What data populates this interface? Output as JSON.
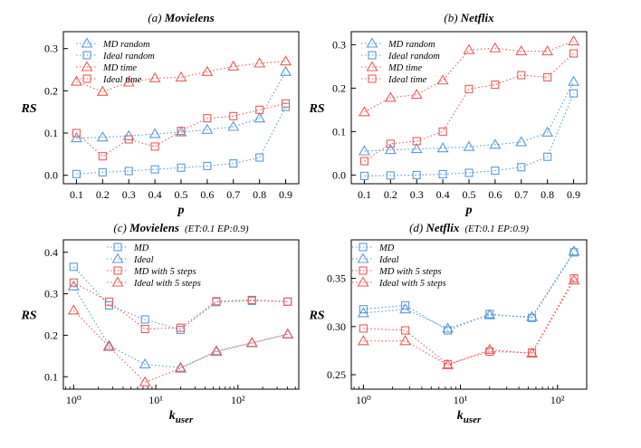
{
  "colors": {
    "blue": "#5b9bd5",
    "red": "#ef5b5b"
  },
  "chart_data": [
    {
      "type": "line",
      "title_prefix": "(a) ",
      "title_main": "Movielens",
      "title_suffix": "",
      "xlabel": "p",
      "ylabel": "RS",
      "xscale": "linear",
      "xlim": [
        0.05,
        0.95
      ],
      "ylim": [
        -0.02,
        0.34
      ],
      "xticks": [
        0.1,
        0.2,
        0.3,
        0.4,
        0.5,
        0.6,
        0.7,
        0.8,
        0.9
      ],
      "xtick_labels": [
        "0.1",
        "0.2",
        "0.3",
        "0.4",
        "0.5",
        "0.6",
        "0.7",
        "0.8",
        "0.9"
      ],
      "yticks": [
        0.0,
        0.1,
        0.2,
        0.3
      ],
      "ytick_labels": [
        "0.0",
        "0.1",
        "0.2",
        "0.3"
      ],
      "legend_position": "top-left",
      "series": [
        {
          "name": "MD random",
          "color": "blue",
          "marker": "triangle",
          "x": [
            0.1,
            0.2,
            0.3,
            0.4,
            0.5,
            0.6,
            0.7,
            0.8,
            0.9
          ],
          "y": [
            0.088,
            0.09,
            0.093,
            0.098,
            0.102,
            0.108,
            0.115,
            0.135,
            0.245
          ]
        },
        {
          "name": "Ideal random",
          "color": "blue",
          "marker": "square",
          "x": [
            0.1,
            0.2,
            0.3,
            0.4,
            0.5,
            0.6,
            0.7,
            0.8,
            0.9
          ],
          "y": [
            0.003,
            0.007,
            0.01,
            0.014,
            0.018,
            0.022,
            0.028,
            0.042,
            0.162
          ]
        },
        {
          "name": "MD time",
          "color": "red",
          "marker": "triangle",
          "x": [
            0.1,
            0.2,
            0.3,
            0.4,
            0.5,
            0.6,
            0.7,
            0.8,
            0.9
          ],
          "y": [
            0.222,
            0.198,
            0.22,
            0.23,
            0.232,
            0.245,
            0.258,
            0.265,
            0.27
          ]
        },
        {
          "name": "Ideal time",
          "color": "red",
          "marker": "square",
          "x": [
            0.1,
            0.2,
            0.3,
            0.4,
            0.5,
            0.6,
            0.7,
            0.8,
            0.9
          ],
          "y": [
            0.1,
            0.045,
            0.085,
            0.068,
            0.105,
            0.135,
            0.14,
            0.155,
            0.17
          ]
        }
      ]
    },
    {
      "type": "line",
      "title_prefix": "(b) ",
      "title_main": "Netflix",
      "title_suffix": "",
      "xlabel": "p",
      "ylabel": "RS",
      "xscale": "linear",
      "xlim": [
        0.05,
        0.95
      ],
      "ylim": [
        -0.02,
        0.33
      ],
      "xticks": [
        0.1,
        0.2,
        0.3,
        0.4,
        0.5,
        0.6,
        0.7,
        0.8,
        0.9
      ],
      "xtick_labels": [
        "0.1",
        "0.2",
        "0.3",
        "0.4",
        "0.5",
        "0.6",
        "0.7",
        "0.8",
        "0.9"
      ],
      "yticks": [
        0.0,
        0.1,
        0.2,
        0.3
      ],
      "ytick_labels": [
        "0.0",
        "0.1",
        "0.2",
        "0.3"
      ],
      "legend_position": "top-left",
      "series": [
        {
          "name": "MD random",
          "color": "blue",
          "marker": "triangle",
          "x": [
            0.1,
            0.2,
            0.3,
            0.4,
            0.5,
            0.6,
            0.7,
            0.8,
            0.9
          ],
          "y": [
            0.055,
            0.058,
            0.06,
            0.062,
            0.065,
            0.07,
            0.076,
            0.098,
            0.215
          ]
        },
        {
          "name": "Ideal random",
          "color": "blue",
          "marker": "square",
          "x": [
            0.1,
            0.2,
            0.3,
            0.4,
            0.5,
            0.6,
            0.7,
            0.8,
            0.9
          ],
          "y": [
            -0.002,
            -0.001,
            0.0,
            0.002,
            0.005,
            0.01,
            0.018,
            0.042,
            0.188
          ]
        },
        {
          "name": "MD time",
          "color": "red",
          "marker": "triangle",
          "x": [
            0.1,
            0.2,
            0.3,
            0.4,
            0.5,
            0.6,
            0.7,
            0.8,
            0.9
          ],
          "y": [
            0.145,
            0.178,
            0.185,
            0.218,
            0.288,
            0.292,
            0.285,
            0.285,
            0.308
          ]
        },
        {
          "name": "Ideal time",
          "color": "red",
          "marker": "square",
          "x": [
            0.1,
            0.2,
            0.3,
            0.4,
            0.5,
            0.6,
            0.7,
            0.8,
            0.9
          ],
          "y": [
            0.032,
            0.072,
            0.078,
            0.1,
            0.198,
            0.208,
            0.23,
            0.225,
            0.28
          ]
        }
      ]
    },
    {
      "type": "line",
      "title_prefix": "(c) ",
      "title_main": "Movielens",
      "title_suffix": "(ET:0.1 EP:0.9)",
      "xlabel": "kuser",
      "ylabel": "RS",
      "xscale": "log",
      "xlim": [
        0.75,
        550
      ],
      "ylim": [
        0.07,
        0.43
      ],
      "xticks": [
        1,
        10,
        100
      ],
      "xtick_labels": [
        "10⁰",
        "10¹",
        "10²"
      ],
      "yticks": [
        0.1,
        0.2,
        0.3,
        0.4
      ],
      "ytick_labels": [
        "0.1",
        "0.2",
        "0.3",
        "0.4"
      ],
      "legend_position": "top-center",
      "series": [
        {
          "name": "MD",
          "color": "blue",
          "marker": "square",
          "x": [
            1,
            2.7,
            7.4,
            20,
            54.6,
            148,
            403
          ],
          "y": [
            0.365,
            0.272,
            0.238,
            0.213,
            0.28,
            0.283,
            0.281
          ]
        },
        {
          "name": "Ideal",
          "color": "blue",
          "marker": "triangle",
          "x": [
            1,
            2.7,
            7.4,
            20,
            54.6,
            148,
            403
          ],
          "y": [
            0.318,
            0.175,
            0.13,
            0.122,
            0.16,
            0.181,
            0.202
          ]
        },
        {
          "name": "MD with 5 steps",
          "color": "red",
          "marker": "square",
          "x": [
            1,
            2.7,
            7.4,
            20,
            54.6,
            148,
            403
          ],
          "y": [
            0.327,
            0.281,
            0.215,
            0.218,
            0.282,
            0.285,
            0.281
          ]
        },
        {
          "name": "Ideal with 5 steps",
          "color": "red",
          "marker": "triangle",
          "x": [
            1,
            2.7,
            7.4,
            20,
            54.6,
            148,
            403
          ],
          "y": [
            0.26,
            0.172,
            0.087,
            0.12,
            0.162,
            0.182,
            0.203
          ]
        }
      ]
    },
    {
      "type": "line",
      "title_prefix": "(d) ",
      "title_main": "Netflix",
      "title_suffix": "(ET:0.1 EP:0.9)",
      "xlabel": "kuser",
      "ylabel": "RS",
      "xscale": "log",
      "xlim": [
        0.75,
        200
      ],
      "ylim": [
        0.235,
        0.39
      ],
      "xticks": [
        1,
        10,
        100
      ],
      "xtick_labels": [
        "10⁰",
        "10¹",
        "10²"
      ],
      "yticks": [
        0.25,
        0.3,
        0.35
      ],
      "ytick_labels": [
        "0.25",
        "0.30",
        "0.35"
      ],
      "legend_position": "top-left",
      "series": [
        {
          "name": "MD",
          "color": "blue",
          "marker": "square",
          "x": [
            1,
            2.7,
            7.4,
            20,
            54.6,
            148
          ],
          "y": [
            0.318,
            0.322,
            0.296,
            0.313,
            0.309,
            0.377
          ]
        },
        {
          "name": "Ideal",
          "color": "blue",
          "marker": "triangle",
          "x": [
            1,
            2.7,
            7.4,
            20,
            54.6,
            148
          ],
          "y": [
            0.314,
            0.318,
            0.298,
            0.312,
            0.31,
            0.378
          ]
        },
        {
          "name": "MD with 5 steps",
          "color": "red",
          "marker": "square",
          "x": [
            1,
            2.7,
            7.4,
            20,
            54.6,
            148
          ],
          "y": [
            0.298,
            0.296,
            0.261,
            0.274,
            0.273,
            0.35
          ]
        },
        {
          "name": "Ideal with 5 steps",
          "color": "red",
          "marker": "triangle",
          "x": [
            1,
            2.7,
            7.4,
            20,
            54.6,
            148
          ],
          "y": [
            0.285,
            0.285,
            0.26,
            0.276,
            0.272,
            0.348
          ]
        }
      ]
    }
  ]
}
